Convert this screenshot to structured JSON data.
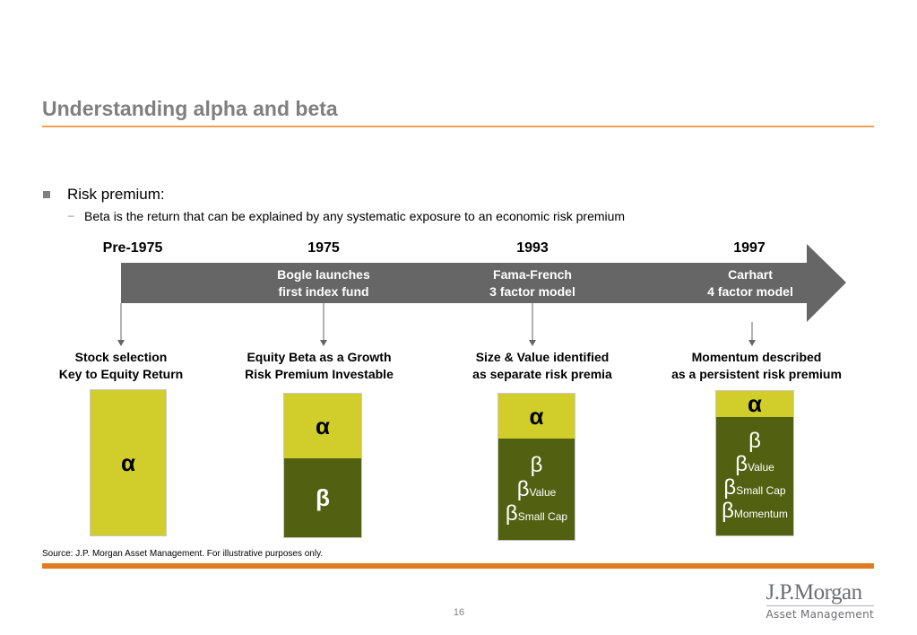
{
  "slide": {
    "title": "Understanding alpha and beta",
    "bullet": "Risk premium:",
    "sub_dash": "–",
    "sub_bullet": "Beta is the return that can be explained by any systematic exposure to an economic risk premium"
  },
  "timeline": {
    "years": [
      "Pre-1975",
      "1975",
      "1993",
      "1997"
    ],
    "arrow_labels": [
      {
        "line1": "Bogle launches",
        "line2": "first index fund"
      },
      {
        "line1": "Fama-French",
        "line2": "3 factor model"
      },
      {
        "line1": "Carhart",
        "line2": "4 factor model"
      }
    ]
  },
  "captions": [
    {
      "line1": "Stock selection",
      "line2": "Key to Equity Return"
    },
    {
      "line1": "Equity Beta as a Growth",
      "line2": "Risk Premium Investable"
    },
    {
      "line1": "Size & Value identified",
      "line2": "as separate risk premia"
    },
    {
      "line1": "Momentum described",
      "line2": "as a persistent risk premium"
    }
  ],
  "columns": [
    {
      "alpha": "α"
    },
    {
      "alpha": "α",
      "beta": "β"
    },
    {
      "alpha": "α",
      "beta": "β",
      "factors": [
        {
          "sym": "β",
          "sub": "Value"
        },
        {
          "sym": "β",
          "sub": "Small Cap"
        }
      ]
    },
    {
      "alpha": "α",
      "beta": "β",
      "factors": [
        {
          "sym": "β",
          "sub": "Value"
        },
        {
          "sym": "β",
          "sub": "Small Cap"
        },
        {
          "sym": "β",
          "sub": "Momentum"
        }
      ]
    }
  ],
  "colors": {
    "alpha_fill": "#d1ce2b",
    "beta_fill": "#526111",
    "arrow_fill": "#666666",
    "accent_orange": "#e07b22"
  },
  "footer": {
    "source": "Source: J.P. Morgan Asset Management. For illustrative purposes only.",
    "page_number": "16",
    "logo_main": "J.P.Morgan",
    "logo_sub": "Asset Management"
  }
}
